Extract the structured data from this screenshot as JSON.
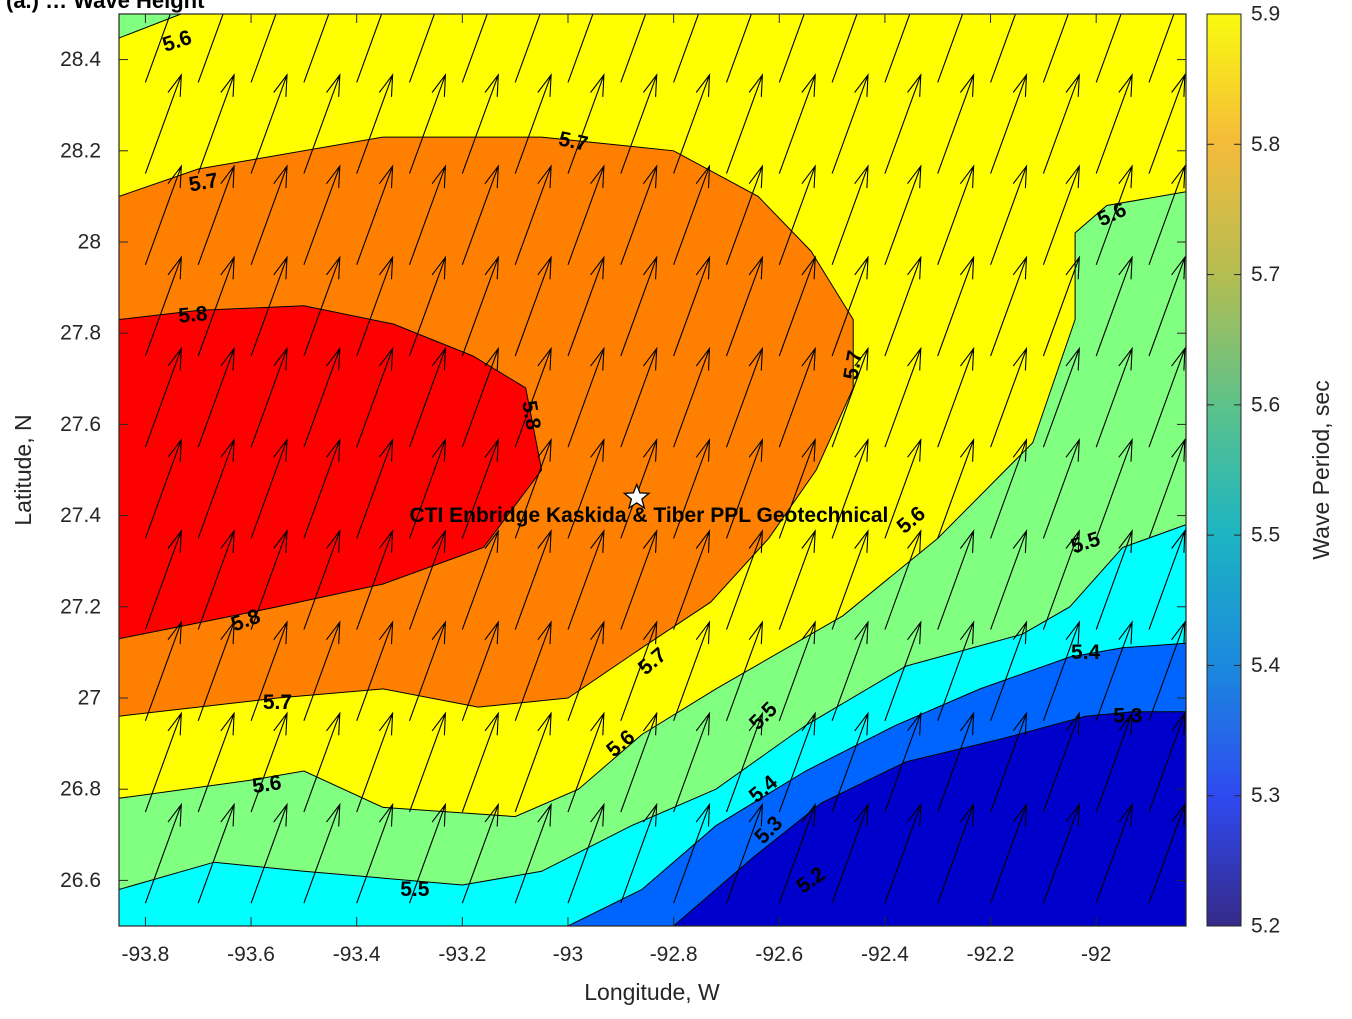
{
  "chart_data": {
    "type": "contour",
    "title": "(a.) … Wave Height",
    "xlabel": "Longitude, W",
    "ylabel": "Latitude, N",
    "xlim": [
      -93.85,
      -91.83
    ],
    "ylim": [
      26.5,
      28.5
    ],
    "xticks": [
      -93.8,
      -93.6,
      -93.4,
      -93.2,
      -93.0,
      -92.8,
      -92.6,
      -92.4,
      -92.2,
      -92.0
    ],
    "yticks": [
      26.6,
      26.8,
      27.0,
      27.2,
      27.4,
      27.6,
      27.8,
      28.0,
      28.2,
      28.4
    ],
    "colorbar": {
      "label": "Wave Period, sec",
      "range": [
        5.2,
        5.9
      ],
      "ticks": [
        5.2,
        5.3,
        5.4,
        5.5,
        5.6,
        5.7,
        5.8,
        5.9
      ],
      "colormap": "parula"
    },
    "levels": [
      5.2,
      5.3,
      5.4,
      5.5,
      5.6,
      5.7,
      5.8
    ],
    "level_colors": {
      "5.2": "#0000cd",
      "5.3": "#0064ff",
      "5.4": "#00ffff",
      "5.5": "#80ff80",
      "5.6": "#ffff00",
      "5.7": "#ff8000",
      "5.8": "#ff0000"
    },
    "regions": [
      {
        "level": 5.7,
        "points": [
          [
            -93.85,
            28.1
          ],
          [
            -93.7,
            28.16
          ],
          [
            -93.35,
            28.23
          ],
          [
            -93.05,
            28.23
          ],
          [
            -92.8,
            28.2
          ],
          [
            -92.64,
            28.1
          ],
          [
            -92.54,
            27.98
          ],
          [
            -92.46,
            27.83
          ],
          [
            -92.46,
            27.68
          ],
          [
            -92.53,
            27.5
          ],
          [
            -92.62,
            27.35
          ],
          [
            -92.73,
            27.21
          ],
          [
            -92.86,
            27.11
          ],
          [
            -93.0,
            27.0
          ],
          [
            -93.17,
            26.98
          ],
          [
            -93.35,
            27.02
          ],
          [
            -93.55,
            27.0
          ],
          [
            -93.7,
            26.98
          ],
          [
            -93.85,
            26.96
          ]
        ]
      },
      {
        "level": 5.8,
        "points": [
          [
            -93.85,
            27.83
          ],
          [
            -93.7,
            27.85
          ],
          [
            -93.5,
            27.86
          ],
          [
            -93.33,
            27.82
          ],
          [
            -93.18,
            27.75
          ],
          [
            -93.08,
            27.68
          ],
          [
            -93.05,
            27.5
          ],
          [
            -93.16,
            27.33
          ],
          [
            -93.35,
            27.25
          ],
          [
            -93.55,
            27.2
          ],
          [
            -93.72,
            27.16
          ],
          [
            -93.85,
            27.13
          ]
        ]
      },
      {
        "level": 5.5,
        "points": [
          [
            -93.85,
            26.78
          ],
          [
            -93.6,
            26.82
          ],
          [
            -93.5,
            26.84
          ],
          [
            -93.35,
            26.76
          ],
          [
            -93.1,
            26.74
          ],
          [
            -92.98,
            26.8
          ],
          [
            -92.86,
            26.92
          ],
          [
            -92.72,
            27.02
          ],
          [
            -92.48,
            27.18
          ],
          [
            -92.3,
            27.35
          ],
          [
            -92.12,
            27.56
          ],
          [
            -92.04,
            27.83
          ],
          [
            -92.04,
            28.02
          ],
          [
            -91.98,
            28.08
          ],
          [
            -91.83,
            28.11
          ],
          [
            -91.83,
            26.5
          ],
          [
            -93.85,
            26.5
          ]
        ]
      },
      {
        "level": 5.4,
        "points": [
          [
            -93.85,
            26.58
          ],
          [
            -93.67,
            26.64
          ],
          [
            -93.5,
            26.62
          ],
          [
            -93.2,
            26.59
          ],
          [
            -93.05,
            26.62
          ],
          [
            -92.88,
            26.72
          ],
          [
            -92.72,
            26.8
          ],
          [
            -92.55,
            26.94
          ],
          [
            -92.36,
            27.07
          ],
          [
            -92.14,
            27.14
          ],
          [
            -92.05,
            27.2
          ],
          [
            -91.95,
            27.33
          ],
          [
            -91.83,
            27.38
          ],
          [
            -91.83,
            26.5
          ],
          [
            -93.85,
            26.5
          ]
        ]
      },
      {
        "level": 5.3,
        "points": [
          [
            -93.0,
            26.5
          ],
          [
            -92.86,
            26.58
          ],
          [
            -92.72,
            26.72
          ],
          [
            -92.55,
            26.84
          ],
          [
            -92.38,
            26.94
          ],
          [
            -92.22,
            27.02
          ],
          [
            -92.05,
            27.09
          ],
          [
            -91.95,
            27.11
          ],
          [
            -91.83,
            27.12
          ],
          [
            -91.83,
            26.5
          ]
        ]
      },
      {
        "level": 5.2,
        "points": [
          [
            -92.8,
            26.5
          ],
          [
            -92.65,
            26.65
          ],
          [
            -92.52,
            26.77
          ],
          [
            -92.36,
            26.86
          ],
          [
            -92.18,
            26.91
          ],
          [
            -92.02,
            26.96
          ],
          [
            -91.93,
            26.97
          ],
          [
            -91.83,
            26.97
          ],
          [
            -91.83,
            26.5
          ]
        ]
      }
    ],
    "contour_labels": [
      {
        "text": "5.6",
        "x": -93.74,
        "y": 28.44,
        "angle": -18
      },
      {
        "text": "5.7",
        "x": -93.69,
        "y": 28.13,
        "angle": -10
      },
      {
        "text": "5.7",
        "x": -92.99,
        "y": 28.22,
        "angle": 12
      },
      {
        "text": "5.6",
        "x": -91.97,
        "y": 28.06,
        "angle": -25
      },
      {
        "text": "5.8",
        "x": -93.71,
        "y": 27.84,
        "angle": -5
      },
      {
        "text": "5.7",
        "x": -92.46,
        "y": 27.73,
        "angle": -80
      },
      {
        "text": "5.8",
        "x": -93.07,
        "y": 27.62,
        "angle": 80
      },
      {
        "text": "5.6",
        "x": -92.35,
        "y": 27.39,
        "angle": -40
      },
      {
        "text": "5.5",
        "x": -92.02,
        "y": 27.34,
        "angle": -18
      },
      {
        "text": "5.8",
        "x": -93.61,
        "y": 27.17,
        "angle": -20
      },
      {
        "text": "5.7",
        "x": -92.84,
        "y": 27.08,
        "angle": -40
      },
      {
        "text": "5.4",
        "x": -92.02,
        "y": 27.1,
        "angle": 0
      },
      {
        "text": "5.7",
        "x": -93.55,
        "y": 26.99,
        "angle": 0
      },
      {
        "text": "5.5",
        "x": -92.63,
        "y": 26.96,
        "angle": -45
      },
      {
        "text": "5.3",
        "x": -91.94,
        "y": 26.96,
        "angle": 0
      },
      {
        "text": "5.6",
        "x": -92.9,
        "y": 26.9,
        "angle": -40
      },
      {
        "text": "5.4",
        "x": -92.63,
        "y": 26.8,
        "angle": -40
      },
      {
        "text": "5.6",
        "x": -93.57,
        "y": 26.81,
        "angle": -8
      },
      {
        "text": "5.3",
        "x": -92.62,
        "y": 26.71,
        "angle": -45
      },
      {
        "text": "5.2",
        "x": -92.54,
        "y": 26.6,
        "angle": -35
      },
      {
        "text": "5.5",
        "x": -93.29,
        "y": 26.58,
        "angle": 0
      }
    ],
    "quiver": {
      "x0": -93.8,
      "dx": 0.1,
      "nx": 20,
      "y0": 26.55,
      "dy": 0.2,
      "ny": 10,
      "direction_deg_from_north": 20
    },
    "marker": {
      "x": -92.87,
      "y": 27.44,
      "symbol": "star"
    },
    "annotation": {
      "text": "CTI Enbridge  Kaskida & Tiber PPL Geotechnical",
      "x": -93.3,
      "y": 27.4
    }
  }
}
